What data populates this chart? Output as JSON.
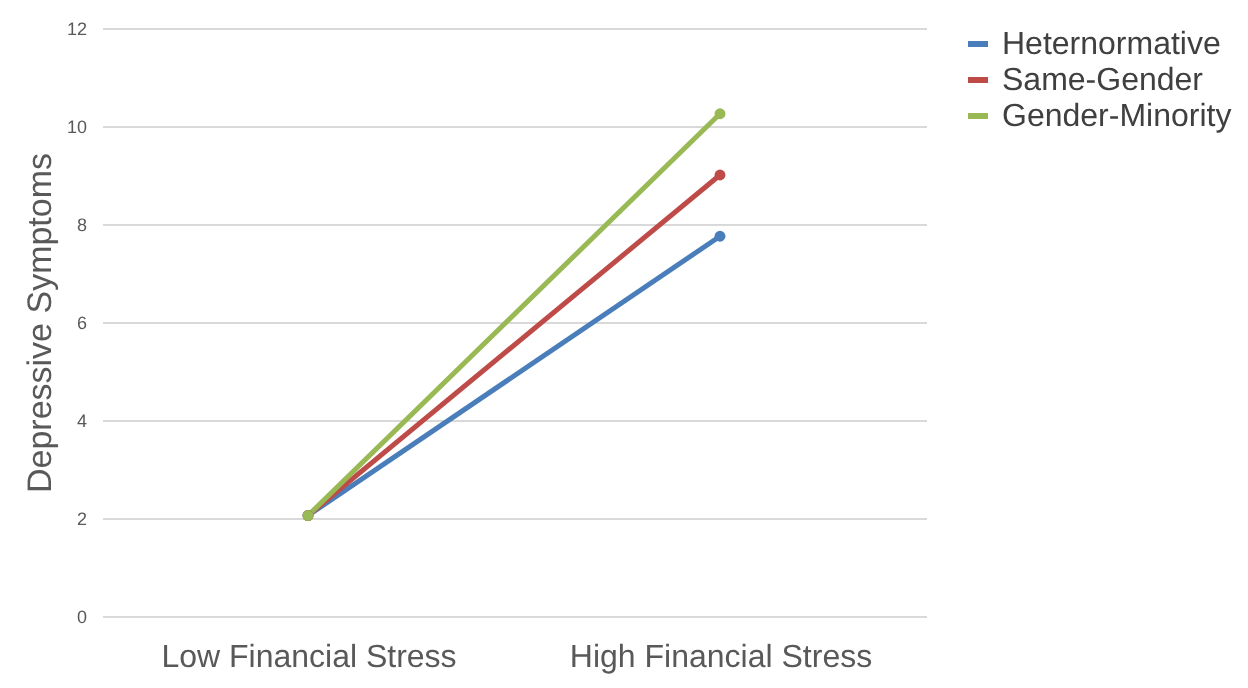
{
  "chart_data": {
    "type": "line",
    "ylabel": "Depressive Symptoms",
    "categories": [
      "Low Financial Stress",
      "High Financial Stress"
    ],
    "series": [
      {
        "name": "Heternormative",
        "color": "#4a7ebb",
        "values": [
          2.05,
          7.75
        ]
      },
      {
        "name": "Same-Gender",
        "color": "#be4b48",
        "values": [
          2.05,
          9.0
        ]
      },
      {
        "name": "Gender-Minority",
        "color": "#98b954",
        "values": [
          2.05,
          10.25
        ]
      }
    ],
    "ylim": [
      0,
      12
    ],
    "yticks": [
      0,
      2,
      4,
      6,
      8,
      10,
      12
    ],
    "grid": "y",
    "legend": "right",
    "marker": "circle",
    "line_style": "solid"
  }
}
